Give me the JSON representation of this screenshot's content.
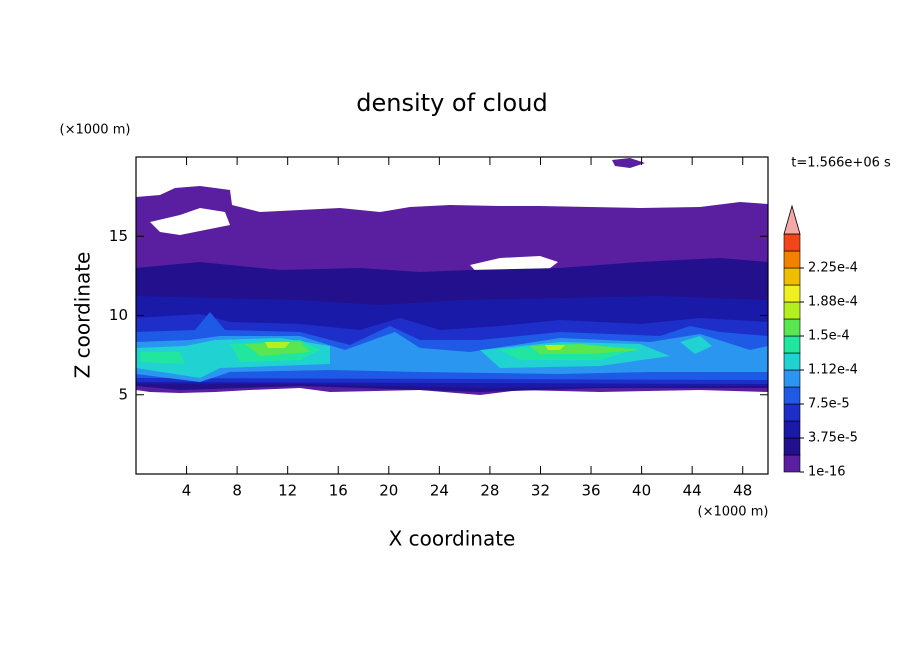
{
  "chart_data": {
    "type": "contour",
    "title": "density of cloud",
    "xlabel": "X coordinate",
    "ylabel": "Z coordinate",
    "x_unit": "(×1000 m)",
    "y_unit": "(×1000 m)",
    "annotation": "t=1.566e+06 s",
    "xlim": [
      0,
      50
    ],
    "xticks": [
      4,
      8,
      12,
      16,
      20,
      24,
      28,
      32,
      36,
      40,
      44,
      48
    ],
    "ylim": [
      0,
      20
    ],
    "yticks": [
      5,
      10,
      15
    ],
    "colorbar": {
      "clim": [
        0,
        0.0002625
      ],
      "ticks": [
        {
          "value": 1e-16,
          "label": "1e-16"
        },
        {
          "value": 3.75e-05,
          "label": "3.75e-5"
        },
        {
          "value": 7.5e-05,
          "label": "7.5e-5"
        },
        {
          "value": 0.0001125,
          "label": "1.12e-4"
        },
        {
          "value": 0.00015,
          "label": "1.5e-4"
        },
        {
          "value": 0.0001875,
          "label": "1.88e-4"
        },
        {
          "value": 0.000225,
          "label": "2.25e-4"
        }
      ],
      "colors": [
        "#5a1ea0",
        "#22108c",
        "#1a1aa8",
        "#1e2ec8",
        "#1e5ae6",
        "#2a96f0",
        "#20d2d2",
        "#20e6a0",
        "#5ae650",
        "#b4f020",
        "#f0f020",
        "#f0be00",
        "#f08200",
        "#f04618"
      ],
      "extend_color": "#f4a8a8"
    }
  }
}
